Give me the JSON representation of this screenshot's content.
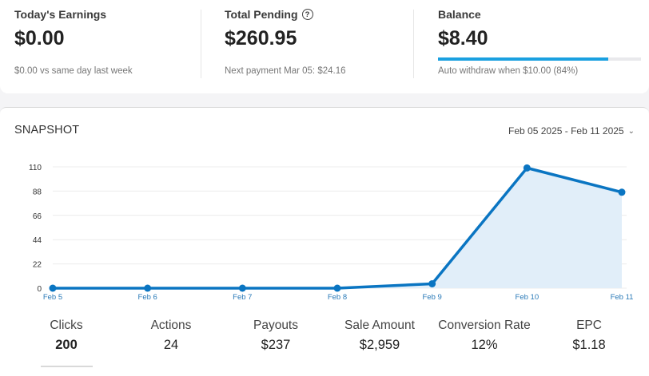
{
  "stats": {
    "today": {
      "label": "Today's Earnings",
      "value": "$0.00",
      "sub": "$0.00 vs same day last week"
    },
    "pending": {
      "label": "Total Pending",
      "help_icon": "?",
      "value": "$260.95",
      "sub": "Next payment Mar 05: $24.16"
    },
    "balance": {
      "label": "Balance",
      "value": "$8.40",
      "sub": "Auto withdraw when $10.00 (84%)",
      "progress": 0.84
    }
  },
  "snapshot": {
    "title": "SNAPSHOT",
    "date_range": "Feb 05 2025 - Feb 11 2025",
    "chevron_icon": "chevron-down-icon"
  },
  "chart_data": {
    "type": "area",
    "x": [
      "Feb 5",
      "Feb 6",
      "Feb 7",
      "Feb 8",
      "Feb 9",
      "Feb 10",
      "Feb 11"
    ],
    "series": [
      {
        "values": [
          0,
          0,
          0,
          0,
          4,
          109,
          87
        ]
      }
    ],
    "yticks": [
      0,
      22,
      44,
      66,
      88,
      110
    ],
    "ylim": [
      0,
      110
    ],
    "grid": true,
    "line_color": "#0a75c2",
    "fill_color": "#e1eef9",
    "tick_label_color": "#2a7ab8"
  },
  "metrics": [
    {
      "label": "Clicks",
      "value": "200",
      "active": true
    },
    {
      "label": "Actions",
      "value": "24"
    },
    {
      "label": "Payouts",
      "value": "$237"
    },
    {
      "label": "Sale Amount",
      "value": "$2,959"
    },
    {
      "label": "Conversion Rate",
      "value": "12%"
    },
    {
      "label": "EPC",
      "value": "$1.18"
    }
  ]
}
